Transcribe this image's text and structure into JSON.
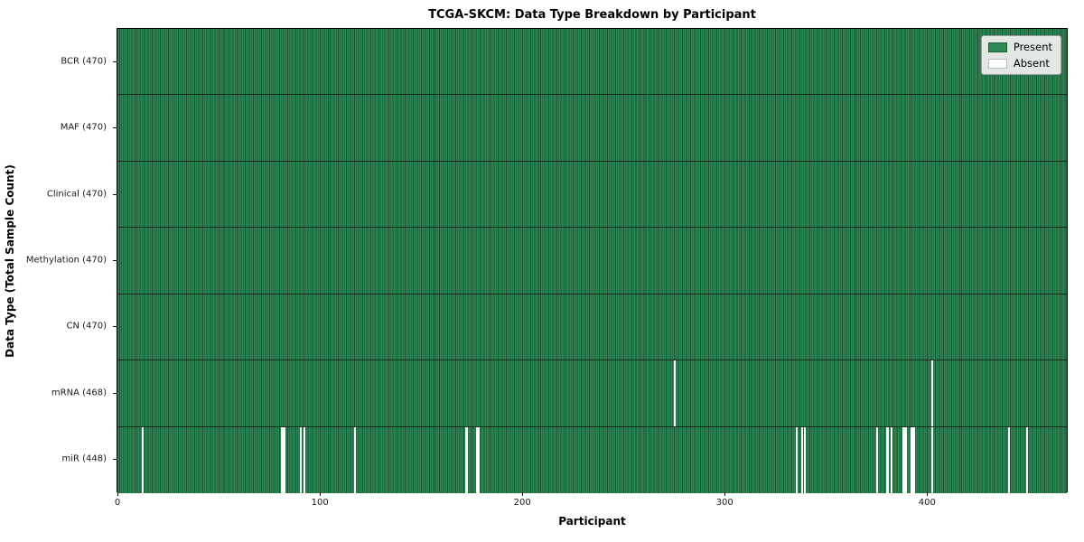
{
  "title": "TCGA-SKCM: Data Type Breakdown by Participant",
  "axes": {
    "xlabel": "Participant",
    "ylabel": "Data Type (Total Sample Count)"
  },
  "legend": {
    "present_label": "Present",
    "absent_label": "Absent"
  },
  "colors": {
    "present": "#2e8b57",
    "present_edge": "#17502e",
    "absent": "#ffffff",
    "legend_bg": "#e4e8e4"
  },
  "chart_data": {
    "type": "heatmap",
    "title": "TCGA-SKCM: Data Type Breakdown by Participant",
    "xlabel": "Participant",
    "ylabel": "Data Type (Total Sample Count)",
    "n_participants": 470,
    "x_ticks": [
      0,
      100,
      200,
      300,
      400
    ],
    "grid": false,
    "legend_entries": [
      "Present",
      "Absent"
    ],
    "legend_position": "upper right",
    "rows": [
      {
        "name": "BCR",
        "label": "BCR (470)",
        "total": 470,
        "absent": []
      },
      {
        "name": "MAF",
        "label": "MAF (470)",
        "total": 470,
        "absent": []
      },
      {
        "name": "Clinical",
        "label": "Clinical (470)",
        "total": 470,
        "absent": []
      },
      {
        "name": "Methylation",
        "label": "Methylation (470)",
        "total": 470,
        "absent": []
      },
      {
        "name": "CN",
        "label": "CN (470)",
        "total": 470,
        "absent": []
      },
      {
        "name": "mRNA",
        "label": "mRNA (468)",
        "total": 468,
        "absent": [
          275,
          402
        ]
      },
      {
        "name": "miR",
        "label": "miR (448)",
        "total": 448,
        "absent": [
          12,
          81,
          82,
          90,
          92,
          117,
          172,
          177,
          178,
          335,
          338,
          339,
          375,
          380,
          382,
          388,
          389,
          392,
          393,
          402,
          440,
          449
        ]
      }
    ]
  }
}
